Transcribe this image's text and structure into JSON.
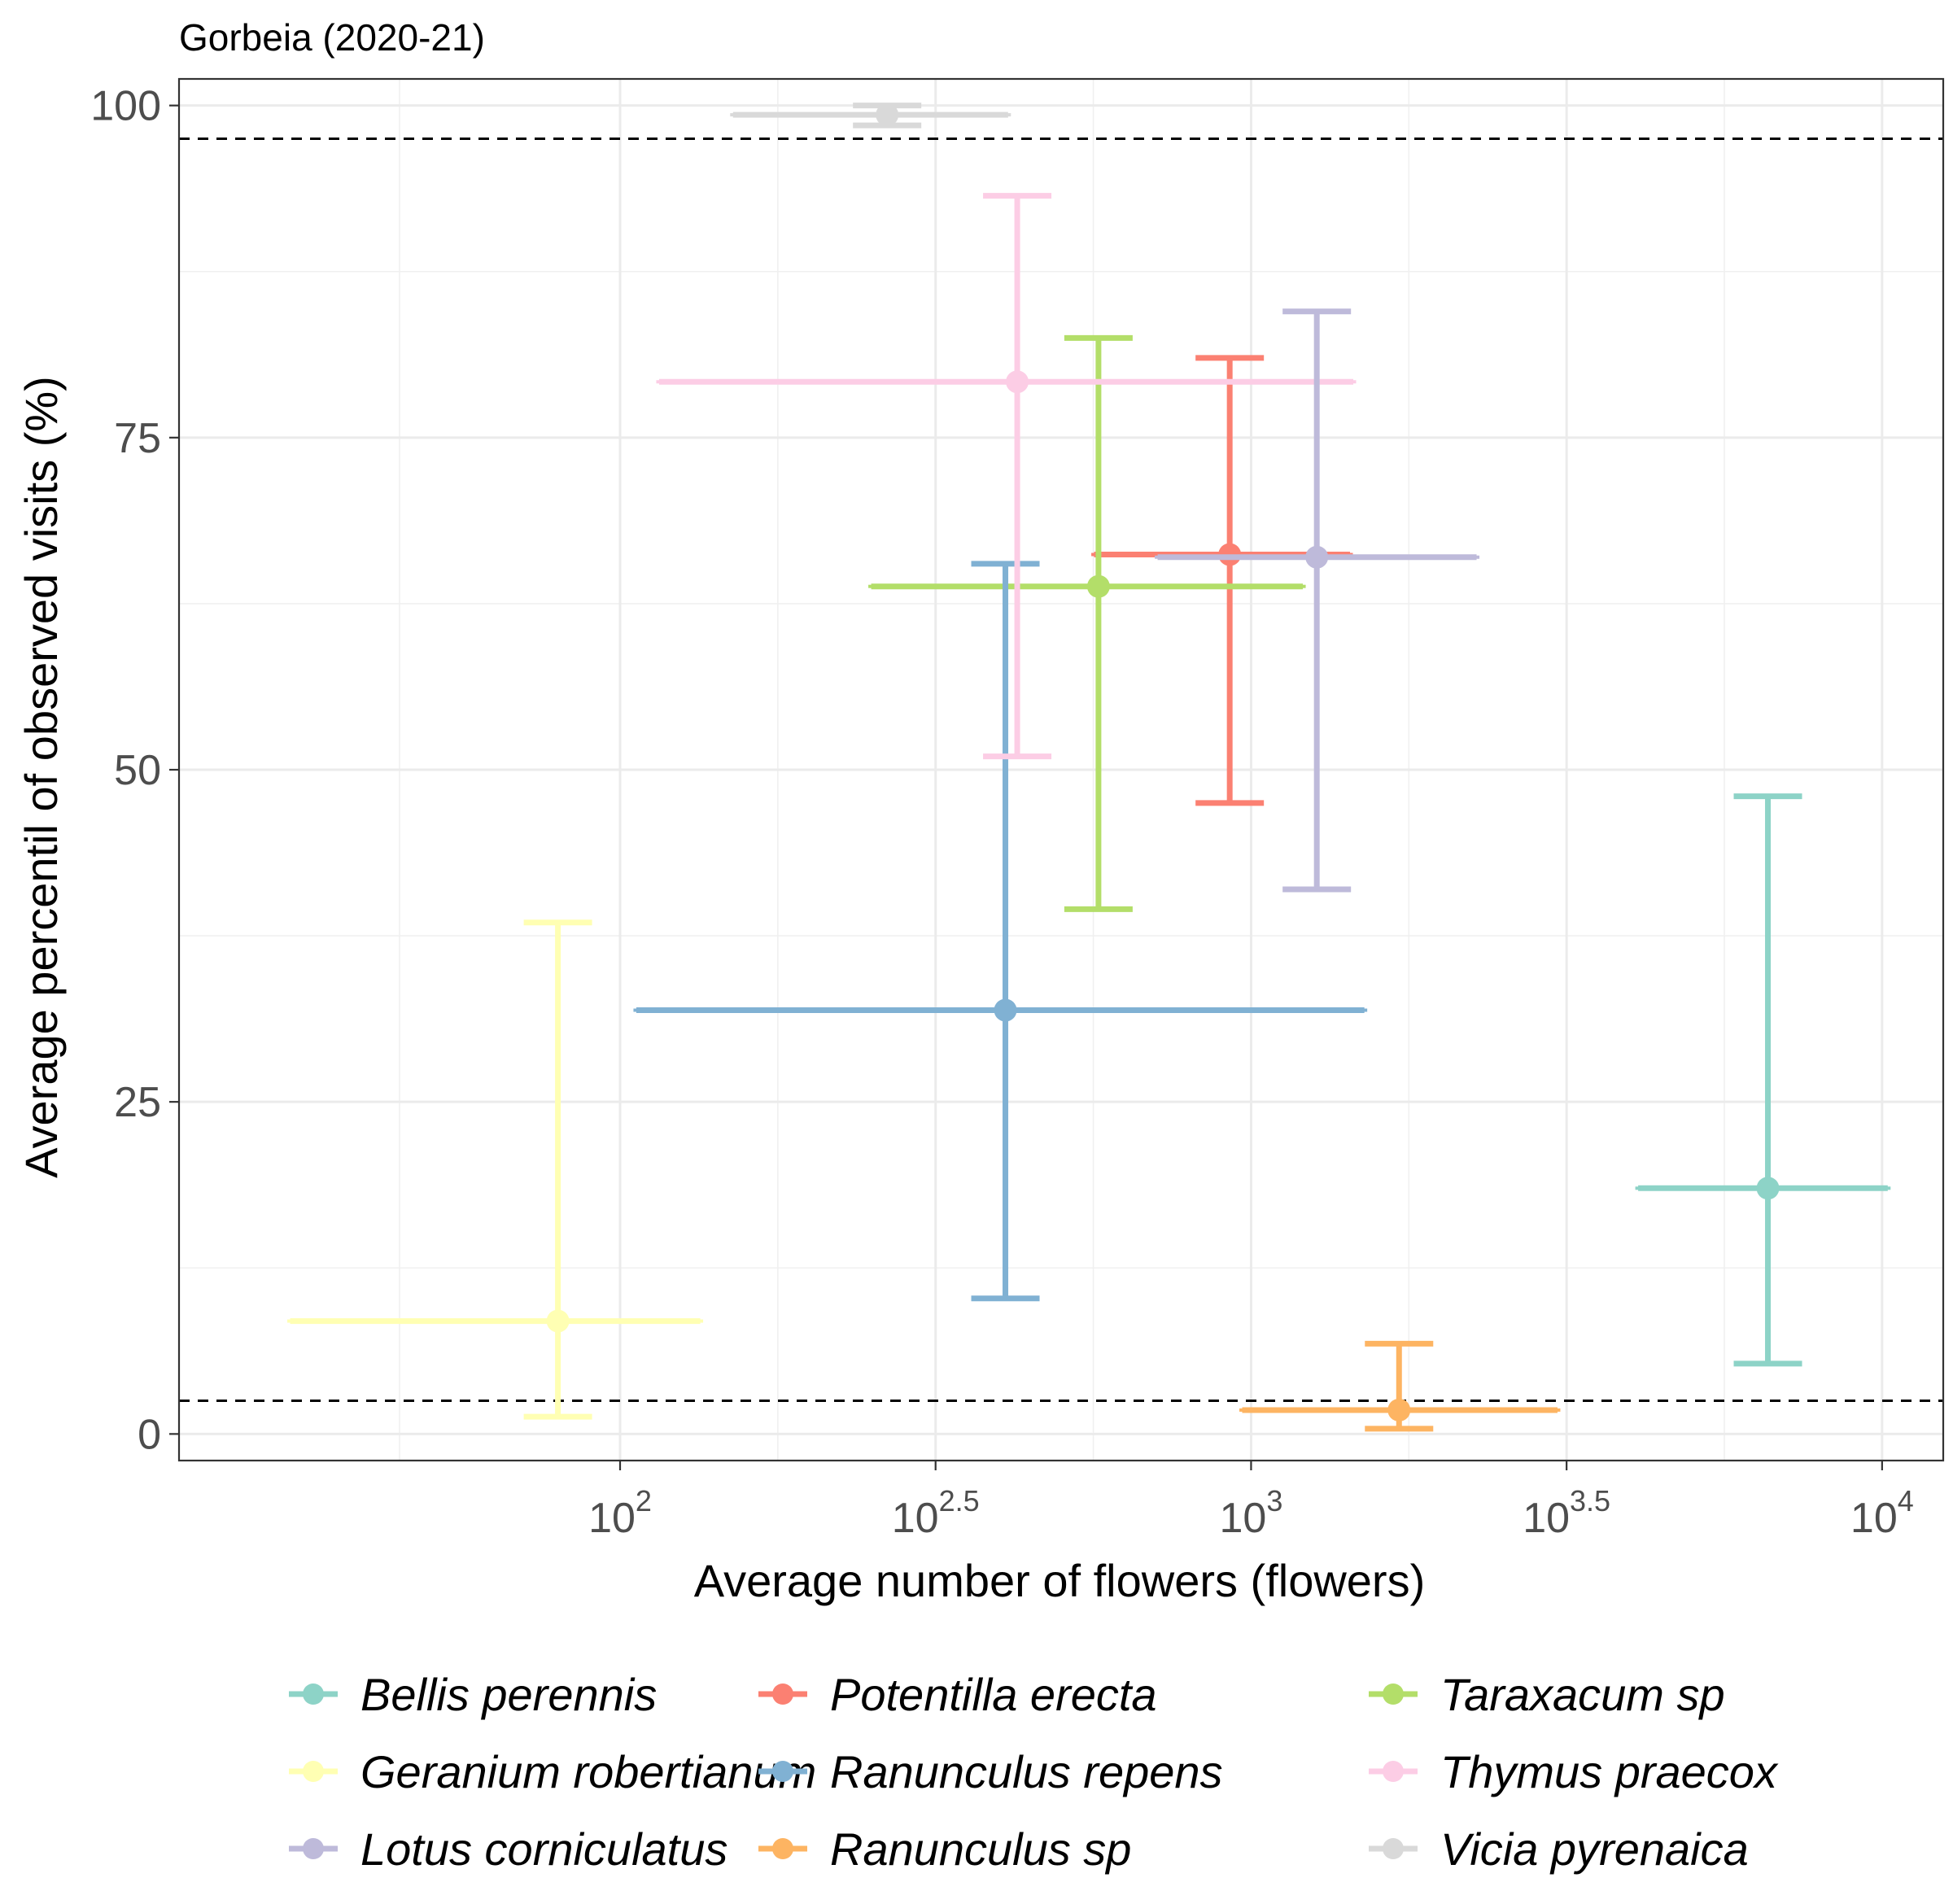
{
  "chart_data": {
    "type": "scatter",
    "title": "Gorbeia (2020-21)",
    "xlabel": "Average number of flowers (flowers)",
    "ylabel": "Average percentil of observed visits (%)",
    "x_scale": "log10",
    "xlim": [
      20,
      12500
    ],
    "ylim": [
      -2,
      102
    ],
    "x_ticks": [
      {
        "base": "10",
        "exp": "2"
      },
      {
        "base": "10",
        "exp": "2.5"
      },
      {
        "base": "10",
        "exp": "3"
      },
      {
        "base": "10",
        "exp": "3.5"
      },
      {
        "base": "10",
        "exp": "4"
      }
    ],
    "x_tick_values": [
      100,
      316.23,
      1000,
      3162.28,
      10000
    ],
    "y_ticks": [
      "0",
      "25",
      "50",
      "75",
      "100"
    ],
    "y_tick_values": [
      0,
      25,
      50,
      75,
      100
    ],
    "reference_lines": [
      2.5,
      97.5
    ],
    "grid": true,
    "legend_position": "bottom",
    "series": [
      {
        "name": "Bellis perennis",
        "color": "#8DD3C7",
        "x": 6592,
        "x_range": [
          4106,
          10209
        ],
        "y": 18.5,
        "y_range": [
          5.3,
          48.0
        ]
      },
      {
        "name": "Potentilla erecta",
        "color": "#FB8072",
        "x": 925,
        "x_range": [
          564,
          1435
        ],
        "y": 66.2,
        "y_range": [
          47.5,
          81.0
        ]
      },
      {
        "name": "Taraxacum sp",
        "color": "#B3DE69",
        "x": 573,
        "x_range": [
          250,
          1208
        ],
        "y": 63.8,
        "y_range": [
          39.5,
          82.5
        ]
      },
      {
        "name": "Geranium robertianum",
        "color": "#FFFFB3",
        "x": 79.7,
        "x_range": [
          30.0,
          134.0
        ],
        "y": 8.5,
        "y_range": [
          1.3,
          38.5
        ]
      },
      {
        "name": "Ranunculus repens",
        "color": "#80B1D3",
        "x": 408,
        "x_range": [
          106.1,
          1512
        ],
        "y": 31.9,
        "y_range": [
          10.2,
          65.5
        ]
      },
      {
        "name": "Thymus praecox",
        "color": "#FCCDE5",
        "x": 426,
        "x_range": [
          115.3,
          1452
        ],
        "y": 79.2,
        "y_range": [
          51.0,
          93.2
        ]
      },
      {
        "name": "Lotus corniculatus",
        "color": "#BEBADA",
        "x": 1271,
        "x_range": [
          711,
          2277
        ],
        "y": 66.0,
        "y_range": [
          41.0,
          84.5
        ]
      },
      {
        "name": "Ranunculus sp",
        "color": "#FDB462",
        "x": 1716,
        "x_range": [
          968,
          3059
        ],
        "y": 1.8,
        "y_range": [
          0.4,
          6.8
        ]
      },
      {
        "name": "Vicia pyrenaica",
        "color": "#D9D9D9",
        "x": 265,
        "x_range": [
          151,
          412
        ],
        "y": 99.3,
        "y_range": [
          98.5,
          100.0
        ]
      }
    ],
    "legend_order": [
      "Bellis perennis",
      "Geranium robertianum",
      "Lotus corniculatus",
      "Potentilla erecta",
      "Ranunculus repens",
      "Ranunculus sp",
      "Taraxacum sp",
      "Thymus praecox",
      "Vicia pyrenaica"
    ]
  }
}
